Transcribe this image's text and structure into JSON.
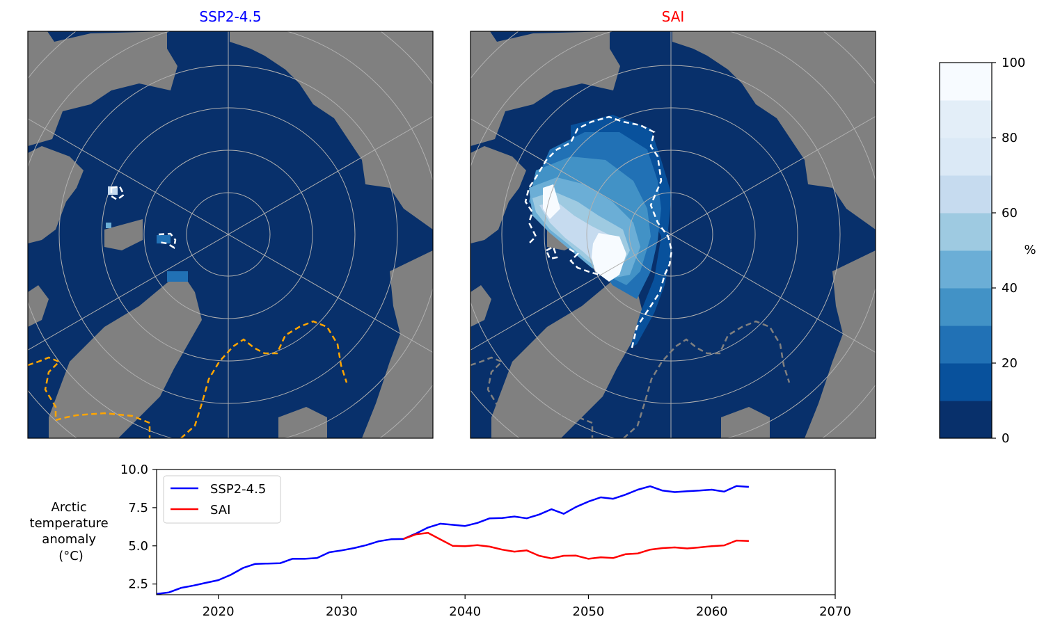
{
  "chart_data": [
    {
      "type": "heatmap",
      "title": "SSP2-4.5",
      "title_color": "#0000ff",
      "projection": "north polar stereographic",
      "land_color": "#808080",
      "ocean_color": "#08306b",
      "contour_colors": {
        "white": "#ffffff",
        "boundary": "#ffa500"
      }
    },
    {
      "type": "heatmap",
      "title": "SAI",
      "title_color": "#ff0000",
      "projection": "north polar stereographic",
      "land_color": "#808080",
      "ocean_color": "#08306b",
      "contour_colors": {
        "white": "#ffffff",
        "boundary": "#808080"
      }
    },
    {
      "type": "colorbar",
      "label": "%",
      "range": [
        0,
        100
      ],
      "levels": 10,
      "ticks": [
        "0",
        "20",
        "40",
        "60",
        "80",
        "100"
      ],
      "colors": [
        "#08306b",
        "#08519c",
        "#2171b5",
        "#4292c6",
        "#6baed6",
        "#9ecae1",
        "#c6dbef",
        "#dbe9f6",
        "#e3eef8",
        "#f7fbff"
      ]
    },
    {
      "type": "line",
      "ylabel": "Arctic temperature anomaly (°C)",
      "ylabel_lines": [
        "Arctic",
        "temperature",
        "anomaly",
        "(°C)"
      ],
      "xlim": [
        2015,
        2070
      ],
      "ylim": [
        1.8,
        10.0
      ],
      "xticks": [
        "2020",
        "2030",
        "2040",
        "2050",
        "2060",
        "2070"
      ],
      "yticks": [
        "2.5",
        "5.0",
        "7.5",
        "10.0"
      ],
      "legend_position": "upper-left",
      "series": [
        {
          "name": "SSP2-4.5",
          "color": "#0000ff",
          "x": [
            2015,
            2016,
            2017,
            2018,
            2019,
            2020,
            2021,
            2022,
            2023,
            2024,
            2025,
            2026,
            2027,
            2028,
            2029,
            2030,
            2031,
            2032,
            2033,
            2034,
            2035,
            2036,
            2037,
            2038,
            2039,
            2040,
            2041,
            2042,
            2043,
            2044,
            2045,
            2046,
            2047,
            2048,
            2049,
            2050,
            2051,
            2052,
            2053,
            2054,
            2055,
            2056,
            2057,
            2058,
            2059,
            2060,
            2061,
            2062,
            2063
          ],
          "y": [
            1.85,
            1.95,
            2.25,
            2.4,
            2.58,
            2.75,
            3.1,
            3.55,
            3.82,
            3.84,
            3.86,
            4.15,
            4.15,
            4.2,
            4.58,
            4.7,
            4.85,
            5.05,
            5.3,
            5.43,
            5.45,
            5.8,
            6.2,
            6.45,
            6.38,
            6.3,
            6.5,
            6.8,
            6.82,
            6.92,
            6.8,
            7.05,
            7.4,
            7.1,
            7.55,
            7.9,
            8.18,
            8.08,
            8.35,
            8.68,
            8.9,
            8.62,
            8.52,
            8.58,
            8.62,
            8.68,
            8.55,
            8.92,
            8.86
          ]
        },
        {
          "name": "SAI",
          "color": "#ff0000",
          "x": [
            2035,
            2036,
            2037,
            2038,
            2039,
            2040,
            2041,
            2042,
            2043,
            2044,
            2045,
            2046,
            2047,
            2048,
            2049,
            2050,
            2051,
            2052,
            2053,
            2054,
            2055,
            2056,
            2057,
            2058,
            2059,
            2060,
            2061,
            2062,
            2063
          ],
          "y": [
            5.45,
            5.75,
            5.85,
            5.42,
            5.0,
            4.98,
            5.05,
            4.95,
            4.75,
            4.62,
            4.7,
            4.35,
            4.18,
            4.35,
            4.36,
            4.15,
            4.25,
            4.2,
            4.45,
            4.5,
            4.75,
            4.85,
            4.9,
            4.83,
            4.9,
            4.98,
            5.03,
            5.35,
            5.32
          ]
        }
      ]
    }
  ]
}
